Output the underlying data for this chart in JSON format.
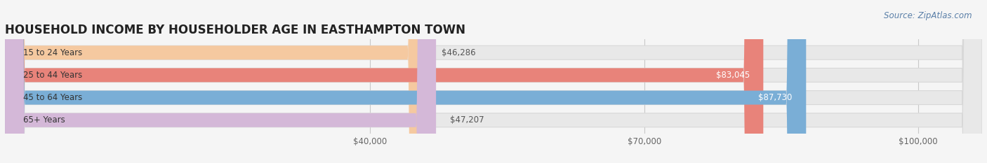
{
  "title": "HOUSEHOLD INCOME BY HOUSEHOLDER AGE IN EASTHAMPTON TOWN",
  "source": "Source: ZipAtlas.com",
  "categories": [
    "15 to 24 Years",
    "25 to 44 Years",
    "45 to 64 Years",
    "65+ Years"
  ],
  "values": [
    46286,
    83045,
    87730,
    47207
  ],
  "labels": [
    "$46,286",
    "$83,045",
    "$87,730",
    "$47,207"
  ],
  "bar_colors": [
    "#f5c9a0",
    "#e8837a",
    "#7aaed6",
    "#d4b8d8"
  ],
  "xlim": [
    0,
    107000
  ],
  "xticks": [
    40000,
    70000,
    100000
  ],
  "xticklabels": [
    "$40,000",
    "$70,000",
    "$100,000"
  ],
  "background_color": "#f5f5f5",
  "title_fontsize": 12,
  "label_fontsize": 8.5,
  "axis_fontsize": 8.5,
  "source_fontsize": 8.5,
  "bar_height": 0.62,
  "figsize": [
    14.06,
    2.33
  ],
  "dpi": 100
}
